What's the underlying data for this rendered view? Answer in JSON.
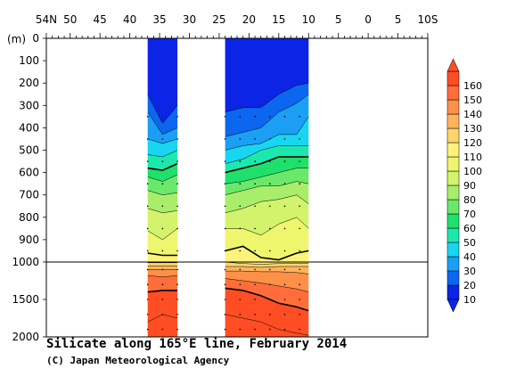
{
  "chart_data": {
    "type": "contour",
    "title": "Silicate along 165°E line, February 2014",
    "credit": "(C) Japan Meteorological Agency",
    "y_unit": "(m)",
    "x_tick_labels": [
      "54N",
      "50",
      "45",
      "40",
      "35",
      "30",
      "25",
      "20",
      "15",
      "10",
      "5",
      "0",
      "5",
      "10S"
    ],
    "x_range": [
      54,
      -10
    ],
    "y_ticks_upper": [
      "0",
      "100",
      "200",
      "300",
      "400",
      "500",
      "600",
      "700",
      "800",
      "900",
      "1000"
    ],
    "y_ticks_lower": [
      "1500",
      "2000"
    ],
    "y_range": [
      0,
      2000
    ],
    "colorbar": {
      "labels": [
        "10",
        "20",
        "30",
        "40",
        "50",
        "60",
        "70",
        "80",
        "90",
        "100",
        "110",
        "120",
        "130",
        "140",
        "150",
        "160"
      ],
      "colors": [
        "#0b24e6",
        "#0b66f0",
        "#1a9ff5",
        "#18d5f2",
        "#1ce8ae",
        "#1fe06a",
        "#6ae86a",
        "#a8ee6a",
        "#d2f36b",
        "#eef66d",
        "#fff27b",
        "#ffd56c",
        "#ffb45c",
        "#ff9048",
        "#ff6e3a",
        "#ff4e24",
        "#ff4e24"
      ]
    },
    "sections": [
      {
        "lat_range": [
          37,
          32
        ],
        "lats": [
          37,
          34.5,
          32
        ],
        "contours": [
          {
            "value": 10,
            "depths": [
              250,
              380,
              300
            ]
          },
          {
            "value": 20,
            "depths": [
              330,
              430,
              400
            ]
          },
          {
            "value": 30,
            "depths": [
              450,
              470,
              450
            ]
          },
          {
            "value": 40,
            "depths": [
              520,
              530,
              500
            ]
          },
          {
            "value": 50,
            "depths": [
              580,
              590,
              560
            ]
          },
          {
            "value": 60,
            "depths": [
              620,
              640,
              610
            ]
          },
          {
            "value": 70,
            "depths": [
              680,
              700,
              690
            ]
          },
          {
            "value": 80,
            "depths": [
              760,
              780,
              770
            ]
          },
          {
            "value": 90,
            "depths": [
              860,
              900,
              850
            ]
          },
          {
            "value": 100,
            "depths": [
              960,
              970,
              970
            ]
          },
          {
            "value": 110,
            "depths": [
              1010,
              1010,
              1010
            ]
          },
          {
            "value": 120,
            "depths": [
              1050,
              1050,
              1050
            ]
          },
          {
            "value": 130,
            "depths": [
              1100,
              1100,
              1100
            ]
          },
          {
            "value": 140,
            "depths": [
              1180,
              1200,
              1180
            ]
          },
          {
            "value": 150,
            "depths": [
              1400,
              1380,
              1380
            ]
          },
          {
            "value": 160,
            "depths": [
              1800,
              1700,
              1750
            ]
          }
        ]
      },
      {
        "lat_range": [
          24,
          10
        ],
        "lats": [
          24,
          21,
          18,
          15,
          12,
          10
        ],
        "contours": [
          {
            "value": 10,
            "depths": [
              330,
              310,
              310,
              250,
              210,
              200
            ]
          },
          {
            "value": 20,
            "depths": [
              440,
              420,
              400,
              330,
              290,
              250
            ]
          },
          {
            "value": 30,
            "depths": [
              500,
              480,
              470,
              430,
              430,
              350
            ]
          },
          {
            "value": 40,
            "depths": [
              560,
              540,
              500,
              480,
              480,
              480
            ]
          },
          {
            "value": 50,
            "depths": [
              600,
              580,
              560,
              530,
              530,
              530
            ]
          },
          {
            "value": 60,
            "depths": [
              650,
              640,
              620,
              600,
              580,
              580
            ]
          },
          {
            "value": 70,
            "depths": [
              700,
              680,
              660,
              660,
              640,
              650
            ]
          },
          {
            "value": 80,
            "depths": [
              780,
              760,
              730,
              720,
              700,
              740
            ]
          },
          {
            "value": 90,
            "depths": [
              850,
              850,
              880,
              830,
              800,
              850
            ]
          },
          {
            "value": 100,
            "depths": [
              950,
              930,
              980,
              990,
              960,
              950
            ]
          },
          {
            "value": 110,
            "depths": [
              1000,
              1020,
              1030,
              1020,
              1020,
              1020
            ]
          },
          {
            "value": 120,
            "depths": [
              1060,
              1060,
              1070,
              1060,
              1060,
              1060
            ]
          },
          {
            "value": 130,
            "depths": [
              1120,
              1120,
              1130,
              1130,
              1140,
              1160
            ]
          },
          {
            "value": 140,
            "depths": [
              1220,
              1250,
              1280,
              1320,
              1360,
              1400
            ]
          },
          {
            "value": 150,
            "depths": [
              1350,
              1380,
              1450,
              1550,
              1600,
              1650
            ]
          },
          {
            "value": 160,
            "depths": [
              1700,
              1750,
              1800,
              1900,
              1950,
              1980
            ]
          }
        ]
      }
    ]
  }
}
